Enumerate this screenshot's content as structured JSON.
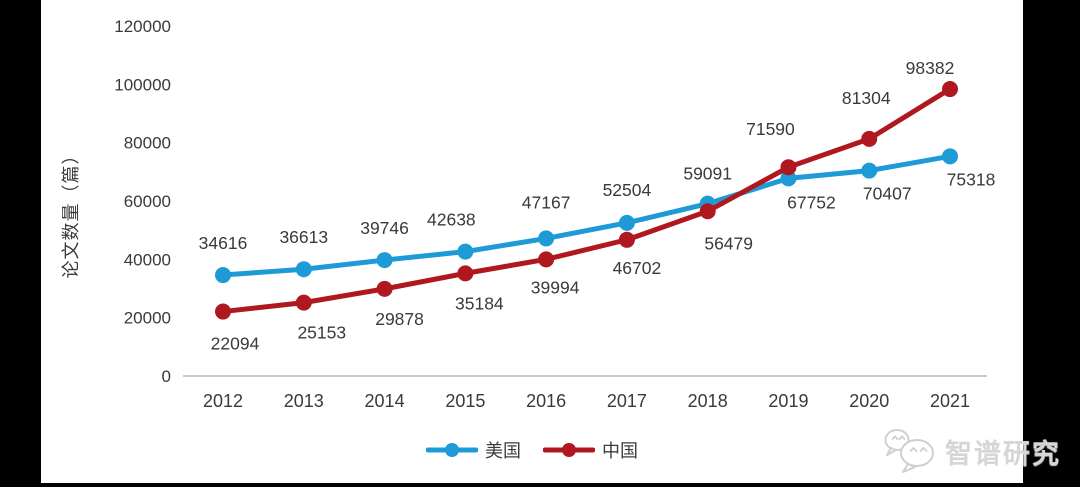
{
  "chart_data": {
    "type": "line",
    "title": "",
    "x": [
      "2012",
      "2013",
      "2014",
      "2015",
      "2016",
      "2017",
      "2018",
      "2019",
      "2020",
      "2021"
    ],
    "series": [
      {
        "name": "美国",
        "color": "#1E9BD7",
        "values": [
          34616,
          36613,
          39746,
          42638,
          47167,
          52504,
          59091,
          67752,
          70407,
          75318
        ]
      },
      {
        "name": "中国",
        "color": "#B0181F",
        "values": [
          22094,
          25153,
          29878,
          35184,
          39994,
          46702,
          56479,
          71590,
          81304,
          98382
        ]
      }
    ],
    "xlabel": "",
    "ylabel": "论文数量（篇）",
    "ylim": [
      0,
      120000
    ],
    "yticks": [
      0,
      20000,
      40000,
      60000,
      80000,
      100000,
      120000
    ],
    "grid": false,
    "legend_position": "bottom",
    "data_labels": true
  },
  "watermark": {
    "icon": "wechat-icon",
    "text": "智谱研究"
  },
  "colors": {
    "background": "#000000",
    "card": "#ffffff",
    "axis_line": "#c9c9c9",
    "text": "#3a3a3a",
    "watermark": "#d2d2d2"
  }
}
